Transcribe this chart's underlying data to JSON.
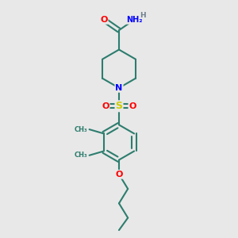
{
  "background_color": "#e8e8e8",
  "bond_color": "#2d7d6e",
  "bond_width": 1.5,
  "atom_colors": {
    "O": "#ff0000",
    "N": "#0000ff",
    "S": "#cccc00",
    "C": "#2d7d6e",
    "H": "#708090"
  },
  "fig_size": [
    3.0,
    3.0
  ],
  "dpi": 100,
  "xlim": [
    0,
    10
  ],
  "ylim": [
    0,
    10
  ]
}
